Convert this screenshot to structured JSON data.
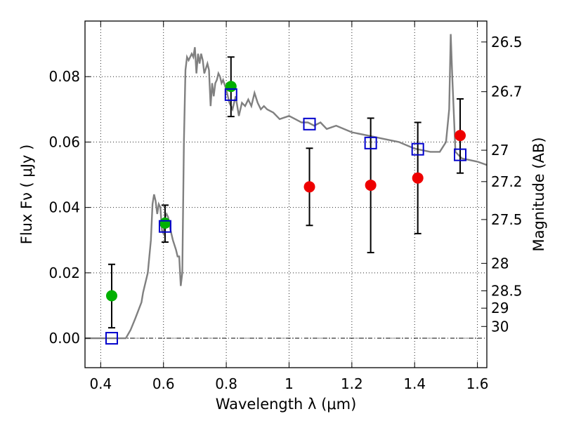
{
  "chart_data": {
    "type": "scatter",
    "xlabel": "Wavelength  λ (μm)",
    "ylabel": "Flux  Fν ( μJy )",
    "y2label": "Magnitude (AB)",
    "xlim": [
      0.35,
      1.63
    ],
    "ylim": [
      -0.009,
      0.097
    ],
    "x_ticks": [
      {
        "value": 0.4,
        "label": "0.4"
      },
      {
        "value": 0.6,
        "label": "0.6"
      },
      {
        "value": 0.8,
        "label": "0.8"
      },
      {
        "value": 1.0,
        "label": "1"
      },
      {
        "value": 1.2,
        "label": "1.2"
      },
      {
        "value": 1.4,
        "label": "1.4"
      },
      {
        "value": 1.6,
        "label": "1.6"
      }
    ],
    "y_ticks": [
      {
        "value": 0.0,
        "label": "0.00"
      },
      {
        "value": 0.02,
        "label": "0.02"
      },
      {
        "value": 0.04,
        "label": "0.04"
      },
      {
        "value": 0.06,
        "label": "0.06"
      },
      {
        "value": 0.08,
        "label": "0.08"
      }
    ],
    "mag_ticks": [
      {
        "flux": 0.0906,
        "label": "26.5"
      },
      {
        "flux": 0.0754,
        "label": "26.7"
      },
      {
        "flux": 0.0575,
        "label": "27"
      },
      {
        "flux": 0.0479,
        "label": "27.2"
      },
      {
        "flux": 0.0363,
        "label": "27.5"
      },
      {
        "flux": 0.0229,
        "label": "28"
      },
      {
        "flux": 0.0145,
        "label": "28.5"
      },
      {
        "flux": 0.0092,
        "label": "29"
      },
      {
        "flux": 0.0036,
        "label": "30"
      }
    ],
    "grid": true,
    "colors": {
      "model": "#808080",
      "green": "#00b000",
      "red": "#ee0000",
      "blue": "#0000cc",
      "errorbar": "#000000",
      "zero_line": "#000000"
    },
    "series": [
      {
        "name": "model spectrum",
        "kind": "line",
        "x": [
          0.35,
          0.48,
          0.495,
          0.51,
          0.53,
          0.535,
          0.55,
          0.56,
          0.565,
          0.57,
          0.575,
          0.58,
          0.585,
          0.59,
          0.595,
          0.6,
          0.605,
          0.61,
          0.615,
          0.62,
          0.63,
          0.64,
          0.645,
          0.65,
          0.655,
          0.66,
          0.665,
          0.67,
          0.675,
          0.68,
          0.69,
          0.695,
          0.7,
          0.705,
          0.71,
          0.715,
          0.72,
          0.725,
          0.73,
          0.74,
          0.745,
          0.75,
          0.755,
          0.76,
          0.765,
          0.77,
          0.775,
          0.78,
          0.785,
          0.79,
          0.8,
          0.81,
          0.82,
          0.83,
          0.84,
          0.85,
          0.86,
          0.87,
          0.88,
          0.89,
          0.9,
          0.91,
          0.92,
          0.93,
          0.95,
          0.97,
          1.0,
          1.02,
          1.04,
          1.06,
          1.08,
          1.1,
          1.12,
          1.15,
          1.2,
          1.25,
          1.3,
          1.35,
          1.4,
          1.45,
          1.48,
          1.5,
          1.51,
          1.515,
          1.52,
          1.53,
          1.55,
          1.6,
          1.63
        ],
        "y": [
          0.0,
          0.0,
          0.0025,
          0.006,
          0.011,
          0.014,
          0.02,
          0.03,
          0.041,
          0.044,
          0.042,
          0.038,
          0.041,
          0.04,
          0.033,
          0.032,
          0.037,
          0.038,
          0.037,
          0.034,
          0.03,
          0.027,
          0.025,
          0.025,
          0.016,
          0.02,
          0.06,
          0.082,
          0.086,
          0.085,
          0.087,
          0.086,
          0.089,
          0.081,
          0.087,
          0.084,
          0.087,
          0.085,
          0.081,
          0.084,
          0.082,
          0.071,
          0.078,
          0.074,
          0.078,
          0.079,
          0.081,
          0.08,
          0.078,
          0.079,
          0.076,
          0.072,
          0.07,
          0.074,
          0.068,
          0.072,
          0.071,
          0.073,
          0.071,
          0.075,
          0.072,
          0.07,
          0.071,
          0.07,
          0.069,
          0.067,
          0.068,
          0.067,
          0.066,
          0.066,
          0.065,
          0.066,
          0.064,
          0.065,
          0.063,
          0.062,
          0.061,
          0.06,
          0.058,
          0.057,
          0.057,
          0.06,
          0.07,
          0.093,
          0.08,
          0.057,
          0.055,
          0.054,
          0.053
        ]
      },
      {
        "name": "green detections",
        "kind": "points",
        "marker": "circle",
        "color_key": "green",
        "points": [
          {
            "x": 0.435,
            "y": 0.013,
            "err_lo": 0.0098,
            "err_hi": 0.0096
          },
          {
            "x": 0.605,
            "y": 0.0352,
            "err_lo": 0.0058,
            "err_hi": 0.0055
          },
          {
            "x": 0.815,
            "y": 0.077,
            "err_lo": 0.0092,
            "err_hi": 0.009
          }
        ]
      },
      {
        "name": "red points",
        "kind": "points",
        "marker": "circle",
        "color_key": "red",
        "points": [
          {
            "x": 1.065,
            "y": 0.0463,
            "err_lo": 0.0118,
            "err_hi": 0.0118
          },
          {
            "x": 1.26,
            "y": 0.0468,
            "err_lo": 0.0206,
            "err_hi": 0.0205
          },
          {
            "x": 1.41,
            "y": 0.049,
            "err_lo": 0.017,
            "err_hi": 0.017
          },
          {
            "x": 1.545,
            "y": 0.062,
            "err_lo": 0.0115,
            "err_hi": 0.0112
          }
        ]
      },
      {
        "name": "model band fluxes",
        "kind": "points",
        "marker": "square",
        "color_key": "blue",
        "points": [
          {
            "x": 0.435,
            "y": 0.0
          },
          {
            "x": 0.605,
            "y": 0.0342
          },
          {
            "x": 0.815,
            "y": 0.0745
          },
          {
            "x": 1.065,
            "y": 0.0655
          },
          {
            "x": 1.26,
            "y": 0.0597
          },
          {
            "x": 1.41,
            "y": 0.0578
          },
          {
            "x": 1.545,
            "y": 0.0561
          }
        ]
      }
    ]
  }
}
